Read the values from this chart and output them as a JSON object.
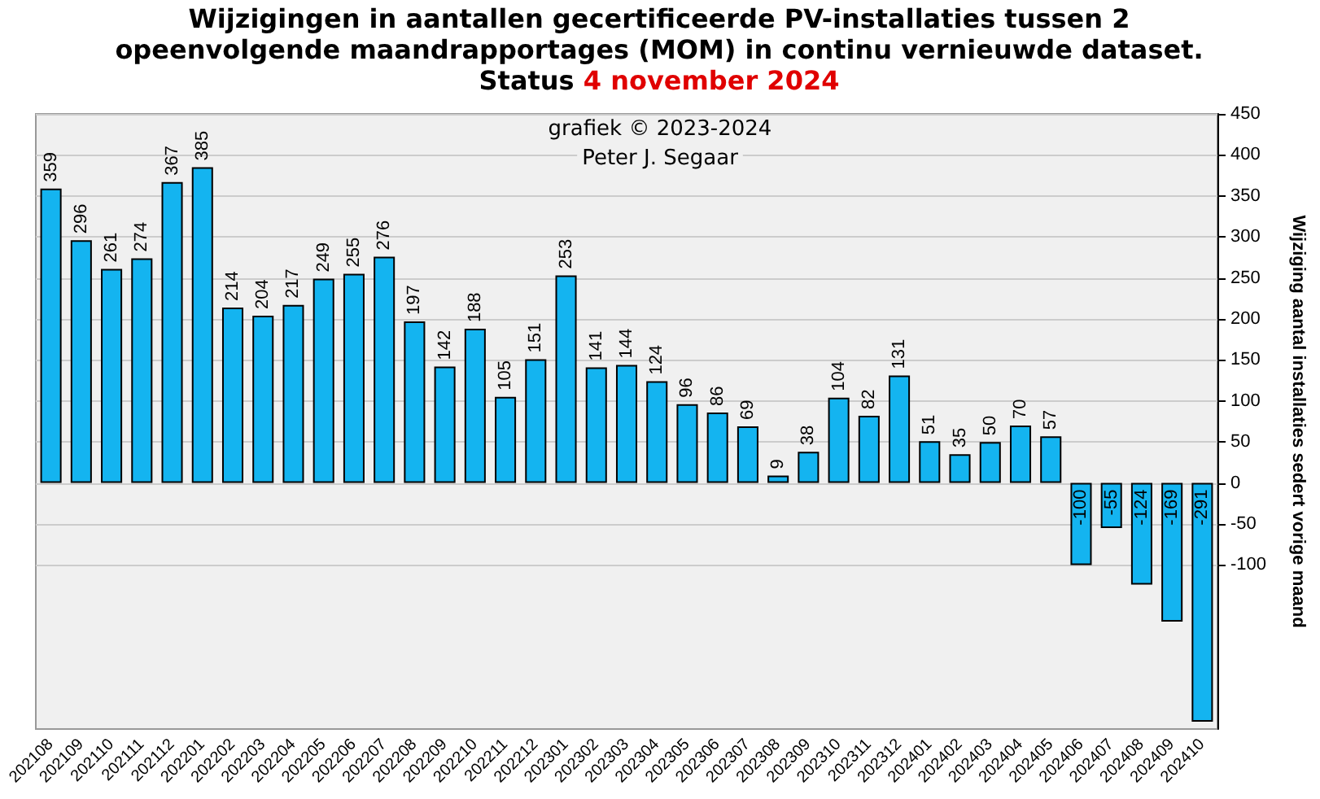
{
  "chart_data": {
    "type": "bar",
    "title": "Wijzigingen in aantallen gecertificeerde PV-installaties tussen 2 opeenvolgende maandrapportages (MOM) in continu vernieuwde dataset. Status",
    "subtitle": "4 november 2024",
    "ylabel": "Wijziging aantal installaties sedert vorige maand",
    "annotations": [
      "grafiek © 2023-2024",
      "Peter J. Segaar"
    ],
    "categories": [
      "202108",
      "202109",
      "202110",
      "202111",
      "202112",
      "202201",
      "202202",
      "202203",
      "202204",
      "202205",
      "202206",
      "202207",
      "202208",
      "202209",
      "202210",
      "202211",
      "202212",
      "202301",
      "202302",
      "202303",
      "202304",
      "202305",
      "202306",
      "202307",
      "202308",
      "202309",
      "202310",
      "202311",
      "202312",
      "202401",
      "202402",
      "202403",
      "202404",
      "202405",
      "202406",
      "202407",
      "202408",
      "202409",
      "202410"
    ],
    "values": [
      359,
      296,
      261,
      274,
      367,
      385,
      214,
      204,
      217,
      249,
      255,
      276,
      197,
      142,
      188,
      105,
      151,
      253,
      141,
      144,
      124,
      96,
      86,
      69,
      9,
      38,
      104,
      82,
      131,
      51,
      35,
      50,
      70,
      57,
      -100,
      -55,
      -124,
      -169,
      -291
    ],
    "color": "#14b4f0",
    "ylim": [
      -300,
      450
    ],
    "yticks": [
      -100,
      -50,
      0,
      50,
      100,
      150,
      200,
      250,
      300,
      350,
      400,
      450
    ],
    "grid": "y",
    "data_labels": true
  }
}
